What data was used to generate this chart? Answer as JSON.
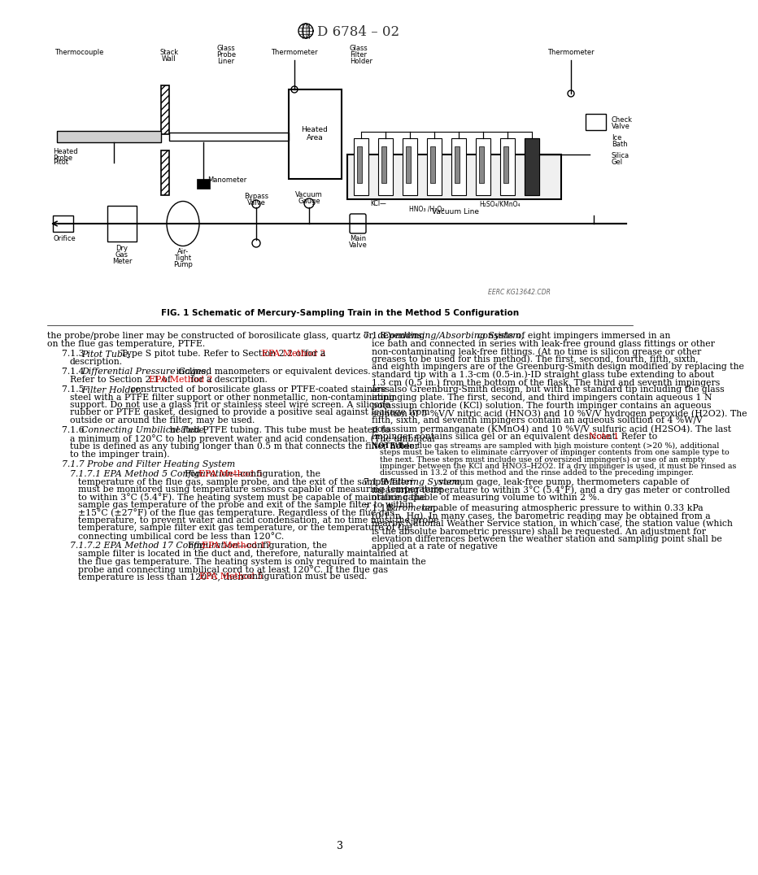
{
  "title": "D 6784 – 02",
  "fig_caption": "FIG. 1 Schematic of Mercury-Sampling Train in the Method 5 Configuration",
  "page_number": "3",
  "watermark": "EERC KG13642.CDR",
  "link_color": "#cc0000",
  "text_color": "#000000",
  "bg_color": "#ffffff",
  "left_column_text": [
    {
      "type": "plain",
      "indent": 0,
      "parts": [
        {
          "text": "the probe/probe liner may be constructed of borosilicate glass, quartz or, depending on the flue gas temperature, PTFE.",
          "style": "normal",
          "color": "black"
        }
      ]
    },
    {
      "type": "para",
      "indent": 18,
      "hang": 10,
      "parts": [
        {
          "text": "7.1.3 ",
          "style": "normal",
          "color": "black"
        },
        {
          "text": "Pitot Tube,",
          "style": "italic",
          "color": "black"
        },
        {
          "text": " Type S pitot tube. Refer to Section 2.2 of ",
          "style": "normal",
          "color": "black"
        },
        {
          "text": "EPA Method 2",
          "style": "normal",
          "color": "red"
        },
        {
          "text": " for a description.",
          "style": "normal",
          "color": "black"
        }
      ]
    },
    {
      "type": "para",
      "indent": 18,
      "hang": 10,
      "parts": [
        {
          "text": "7.1.4 ",
          "style": "normal",
          "color": "black"
        },
        {
          "text": "Differential Pressure Gages,",
          "style": "italic",
          "color": "black"
        },
        {
          "text": " inclined manometers or equivalent devices. Refer to Section 2.1 of ",
          "style": "normal",
          "color": "black"
        },
        {
          "text": "EPA Method 2",
          "style": "normal",
          "color": "red"
        },
        {
          "text": " for a description.",
          "style": "normal",
          "color": "black"
        }
      ]
    },
    {
      "type": "para",
      "indent": 18,
      "hang": 10,
      "parts": [
        {
          "text": "7.1.5 ",
          "style": "normal",
          "color": "black"
        },
        {
          "text": "Filter Holder,",
          "style": "italic",
          "color": "black"
        },
        {
          "text": " constructed of borosilicate glass or PTFE-coated stainless steel with a PTFE filter support or other nonmetallic, non-contaminating support. Do not use a glass frit or stainless steel wire screen. A silicone rubber or PTFE gasket, designed to provide a positive seal against leakage from outside or around the filter, may be used.",
          "style": "normal",
          "color": "black"
        }
      ]
    },
    {
      "type": "para",
      "indent": 18,
      "hang": 10,
      "parts": [
        {
          "text": "7.1.6 ",
          "style": "normal",
          "color": "black"
        },
        {
          "text": "Connecting Umbilical Tube,",
          "style": "italic",
          "color": "black"
        },
        {
          "text": " heated PTFE tubing. This tube must be heated to a minimum of 120°C to help prevent water and acid condensation. (The umbilical tube is defined as any tubing longer than 0.5 m that connects the filter holder to the impinger train).",
          "style": "normal",
          "color": "black"
        }
      ]
    },
    {
      "type": "para",
      "indent": 18,
      "hang": 0,
      "parts": [
        {
          "text": "7.1.7 ",
          "style": "italic",
          "color": "black"
        },
        {
          "text": "Probe and Filter Heating System",
          "style": "italic",
          "color": "black"
        },
        {
          "text": ":",
          "style": "normal",
          "color": "black"
        }
      ]
    },
    {
      "type": "para",
      "indent": 28,
      "hang": 10,
      "parts": [
        {
          "text": "7.1.7.1 ",
          "style": "italic",
          "color": "black"
        },
        {
          "text": "EPA Method 5 Configuration—",
          "style": "italic",
          "color": "black"
        },
        {
          "text": "For ",
          "style": "normal",
          "color": "black"
        },
        {
          "text": "EPA Method 5",
          "style": "normal",
          "color": "red"
        },
        {
          "text": " configuration, the temperature of the flue gas, sample probe, and the exit of the sample filter must be monitored using temperature sensors capable of measuring temperature to within 3°C (5.4°F). The heating system must be capable of maintaining the sample gas temperature of the probe and exit of the sample filter to within ±15°C (±27°F) of the flue gas temperature. Regardless of the flue gas temperature, to prevent water and acid condensation, at no time must the probe temperature, sample filter exit gas temperature, or the temperature of the connecting umbilical cord be less than 120°C.",
          "style": "normal",
          "color": "black"
        }
      ]
    },
    {
      "type": "para",
      "indent": 28,
      "hang": 10,
      "parts": [
        {
          "text": "7.1.7.2 ",
          "style": "italic",
          "color": "black"
        },
        {
          "text": "EPA Method 17 Configuration—",
          "style": "italic",
          "color": "black"
        },
        {
          "text": "For ",
          "style": "normal",
          "color": "black"
        },
        {
          "text": "EPA Method 17",
          "style": "normal",
          "color": "red"
        },
        {
          "text": " configuration, the sample filter is located in the duct and, therefore, naturally maintained at the flue gas temperature. The heating system is only required to maintain the probe and connecting umbilical cord to at least 120°C. If the flue gas temperature is less than 120°C, then ",
          "style": "normal",
          "color": "black"
        },
        {
          "text": "EPA Method 5",
          "style": "normal",
          "color": "red"
        },
        {
          "text": " configuration must be used.",
          "style": "normal",
          "color": "black"
        }
      ]
    }
  ],
  "right_column_text": [
    {
      "type": "para",
      "indent": 18,
      "hang": 10,
      "parts": [
        {
          "text": "7.1.8 ",
          "style": "normal",
          "color": "black"
        },
        {
          "text": "Condensing/Absorbing System,",
          "style": "italic",
          "color": "black"
        },
        {
          "text": " consists of eight impingers immersed in an ice bath and connected in series with leak-free ground glass fittings or other non-contaminating leak-free fittings. (At no time is silicon grease or other greases to be used for this method). The first, second, fourth, fifth, sixth, and eighth impingers are of the Greenburg-Smith design modified by replacing the standard tip with a 1.3-cm (0.5-in.)-ID straight glass tube extending to about 1.3 cm (0.5 in.) from the bottom of the flask. The third and seventh impingers are also Greenburg-Smith design, but with the standard tip including the glass impinging plate. The first, second, and third impingers contain aqueous 1 N potassium chloride (KCl) solution. The fourth impinger contains an aqueous solution of 5 %V/V nitric acid (HNO3) and 10 %V/V hydrogen peroxide (H2O2). The fifth, sixth, and seventh impingers contain an aqueous solution of 4 %W/V potassium permanganate (KMnO4) and 10 %V/V sulfuric acid (H2SO4). The last impinger contains silica gel or an equivalent desiccant. Refer to ",
          "style": "normal",
          "color": "black"
        },
        {
          "text": "Note 1",
          "style": "normal",
          "color": "red"
        },
        {
          "text": ".",
          "style": "normal",
          "color": "black"
        }
      ]
    },
    {
      "type": "note",
      "indent": 28,
      "hang": 10,
      "parts": [
        {
          "text": "NOTE 1—",
          "style": "sc",
          "color": "black"
        },
        {
          "text": "When flue gas streams are sampled with high moisture content (>20 %), additional steps must be taken to eliminate carryover of impinger contents from one sample type to the next. These steps must include use of oversized impinger(s) or use of an empty impinger between the KCl and HNO3–H2O2. If a dry impinger is used, it must be rinsed as discussed in 13.2 of this method and the rinse added to the preceding impinger.",
          "style": "normal",
          "color": "black"
        }
      ]
    },
    {
      "type": "para",
      "indent": 18,
      "hang": 10,
      "parts": [
        {
          "text": "7.1.9 ",
          "style": "normal",
          "color": "black"
        },
        {
          "text": "Metering System,",
          "style": "italic",
          "color": "black"
        },
        {
          "text": " vacuum gage, leak-free pump, thermometers capable of measuring temperature to within 3°C (5.4°F), and a dry gas meter or controlled orifice capable of measuring volume to within 2 %.",
          "style": "normal",
          "color": "black"
        }
      ]
    },
    {
      "type": "para",
      "indent": 18,
      "hang": 10,
      "parts": [
        {
          "text": "7.1.10 ",
          "style": "normal",
          "color": "black"
        },
        {
          "text": "Barometer,",
          "style": "italic",
          "color": "black"
        },
        {
          "text": " capable of measuring atmospheric pressure to within 0.33 kPa (0.1 in. Hg). In many cases, the barometric reading may be obtained from a nearby National Weather Service station, in which case, the station value (which is the absolute barometric pressure) shall be requested. An adjustment for elevation differences between the weather station and sampling point shall be applied at a rate of negative",
          "style": "normal",
          "color": "black"
        }
      ]
    }
  ]
}
